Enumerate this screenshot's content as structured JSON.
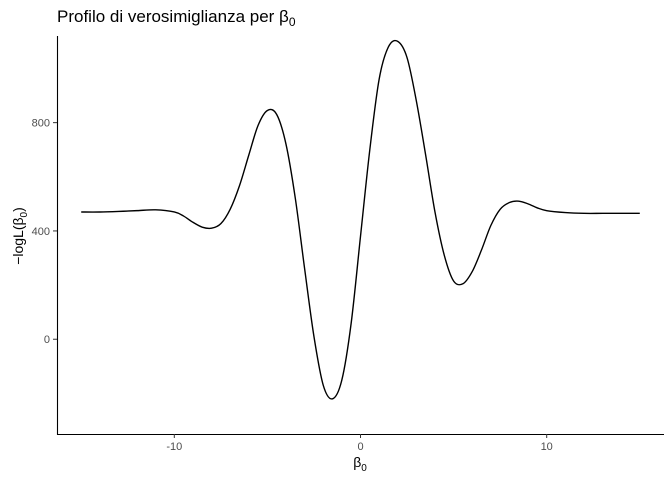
{
  "chart_data": {
    "type": "line",
    "title_text": "Profilo di verosimiglianza per ",
    "title_symbol": "β",
    "title_subscript": "0",
    "xlabel_symbol": "β",
    "xlabel_subscript": "0",
    "ylabel_prefix": "−logL(",
    "ylabel_symbol": "β",
    "ylabel_subscript": "0",
    "ylabel_suffix": ")",
    "xlim": [
      -16.3,
      16.3
    ],
    "ylim": [
      -350,
      1120
    ],
    "x_ticks": [
      -10,
      0,
      10
    ],
    "x_tick_labels": [
      "-10",
      "0",
      "10"
    ],
    "y_ticks": [
      0,
      400,
      800
    ],
    "y_tick_labels": [
      "0",
      "400",
      "800"
    ],
    "grid": false,
    "legend": "none",
    "line_color": "#000000",
    "series": [
      {
        "x": [
          -15,
          -14,
          -13,
          -12,
          -11,
          -10,
          -9.5,
          -9,
          -8.5,
          -8,
          -7.5,
          -7,
          -6.5,
          -6,
          -5.5,
          -5,
          -4.5,
          -4,
          -3.5,
          -3,
          -2.5,
          -2,
          -1.5,
          -1,
          -0.5,
          0,
          0.5,
          1,
          1.5,
          2,
          2.5,
          3,
          3.5,
          4,
          4.5,
          5,
          5.5,
          6,
          6.5,
          7,
          7.5,
          8,
          8.5,
          9,
          9.5,
          10,
          11,
          12,
          13,
          14,
          15
        ],
        "y": [
          470,
          470,
          472,
          475,
          478,
          470,
          455,
          432,
          414,
          410,
          427,
          480,
          567,
          680,
          790,
          845,
          830,
          720,
          520,
          260,
          10,
          -170,
          -220,
          -150,
          60,
          380,
          700,
          960,
          1080,
          1100,
          1040,
          880,
          680,
          470,
          310,
          215,
          205,
          250,
          330,
          420,
          480,
          505,
          510,
          500,
          485,
          475,
          468,
          465,
          465,
          465,
          465
        ]
      }
    ]
  }
}
